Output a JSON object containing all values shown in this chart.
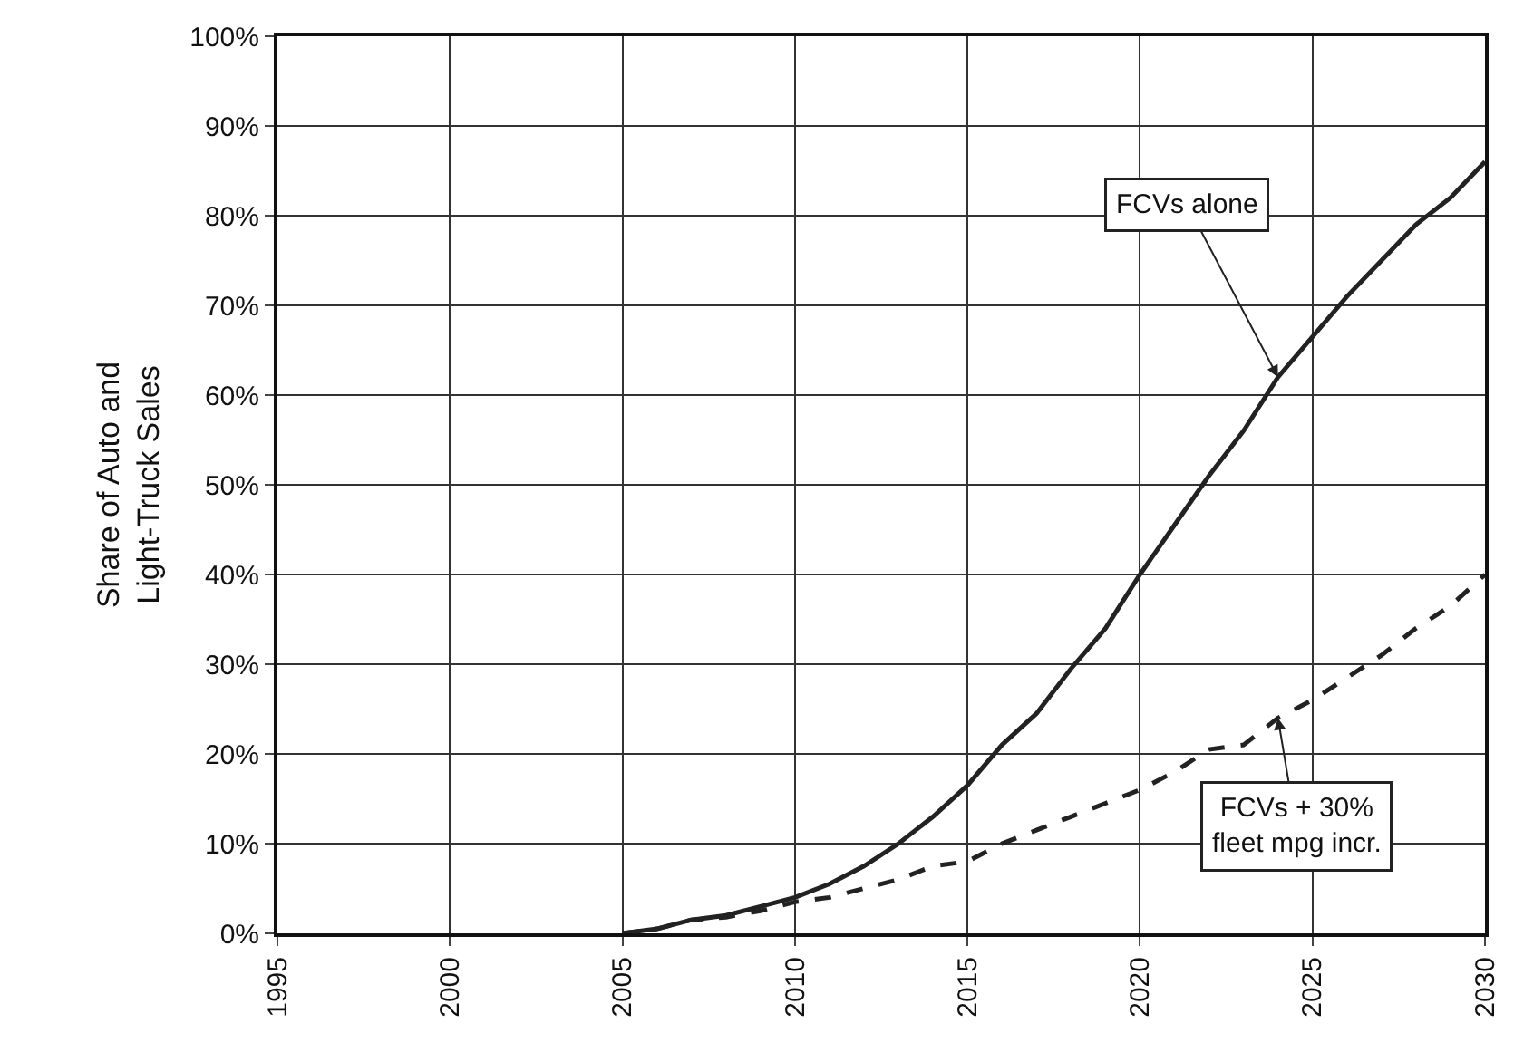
{
  "chart_data": {
    "type": "line",
    "ylabel": "Share of Auto and\nLight-Truck Sales",
    "x": [
      2005,
      2006,
      2007,
      2008,
      2009,
      2010,
      2011,
      2012,
      2013,
      2014,
      2015,
      2016,
      2017,
      2018,
      2019,
      2020,
      2021,
      2022,
      2023,
      2024,
      2025,
      2026,
      2027,
      2028,
      2029,
      2030
    ],
    "series": [
      {
        "color": "#222222",
        "line_style": "solid",
        "values": [
          0,
          0.5,
          1.5,
          2,
          3,
          4,
          5.5,
          7.5,
          10,
          13,
          16.5,
          21,
          24.5,
          29.5,
          34,
          40,
          45.5,
          51,
          56,
          62,
          66.5,
          71,
          75,
          79,
          82,
          86
        ]
      },
      {
        "color": "#222222",
        "line_style": "dashed",
        "values": [
          0,
          0.5,
          1.5,
          1.8,
          2.5,
          3.5,
          4,
          5,
          6,
          7.5,
          8,
          10,
          11.5,
          13,
          14.5,
          16,
          18,
          20.5,
          21,
          24,
          26,
          28.5,
          31,
          34,
          36.5,
          40
        ]
      }
    ],
    "annotations": [
      {
        "text": "FCVs alone",
        "x": 2024,
        "y": 62
      },
      {
        "text": "FCVs + 30%\nfleet mpg incr.",
        "x": 2024,
        "y": 24
      }
    ],
    "xlim": [
      1995,
      2030
    ],
    "xticks": [
      1995,
      2000,
      2005,
      2010,
      2015,
      2020,
      2025,
      2030
    ],
    "ylim": [
      0,
      100
    ],
    "yticks": [
      {
        "value": 0,
        "label": "0%"
      },
      {
        "value": 10,
        "label": "10%"
      },
      {
        "value": 20,
        "label": "20%"
      },
      {
        "value": 30,
        "label": "30%"
      },
      {
        "value": 40,
        "label": "40%"
      },
      {
        "value": 50,
        "label": "50%"
      },
      {
        "value": 60,
        "label": "60%"
      },
      {
        "value": 70,
        "label": "70%"
      },
      {
        "value": 80,
        "label": "80%"
      },
      {
        "value": 90,
        "label": "90%"
      },
      {
        "value": 100,
        "label": "100%"
      }
    ],
    "grid": true
  }
}
